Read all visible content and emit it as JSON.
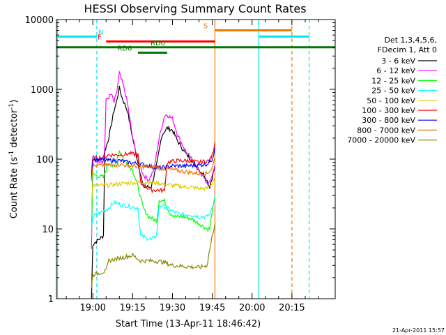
{
  "chart_data": {
    "type": "line",
    "title": "HESSI Observing Summary Count Rates",
    "xlabel": "Start Time (13-Apr-11 18:46:42)",
    "ylabel_main": "Count Rate (s",
    "ylabel_sup1": "-1",
    "ylabel_mid": " detector",
    "ylabel_sup2": "-1",
    "ylabel_end": ")",
    "y_scale": "log",
    "ylim": [
      1,
      10000
    ],
    "xlim_minutes": [
      -13.7,
      91.3
    ],
    "x_ticks": [
      {
        "min": 0,
        "label": "19:00"
      },
      {
        "min": 15,
        "label": "19:15"
      },
      {
        "min": 30,
        "label": "19:30"
      },
      {
        "min": 45,
        "label": "19:45"
      },
      {
        "min": 60,
        "label": "20:00"
      },
      {
        "min": 75,
        "label": "20:15"
      }
    ],
    "y_ticks": [
      {
        "v": 1,
        "label": "1"
      },
      {
        "v": 10,
        "label": "10"
      },
      {
        "v": 100,
        "label": "100"
      },
      {
        "v": 1000,
        "label": "1000"
      },
      {
        "v": 10000,
        "label": "10000"
      }
    ],
    "legend_header": [
      "Det 1,3,4,5,6,",
      "FDecim 1, Att 0"
    ],
    "legend_placement": "right",
    "timestamp": "21-Apr-2011 15:57",
    "series": [
      {
        "name": "3 - 6 keV",
        "color": "#000000",
        "points": [
          [
            -0.5,
            1
          ],
          [
            0,
            6
          ],
          [
            4,
            8
          ],
          [
            4.5,
            130
          ],
          [
            6,
            200
          ],
          [
            8,
            500
          ],
          [
            9,
            680
          ],
          [
            10,
            1050
          ],
          [
            11,
            760
          ],
          [
            13,
            500
          ],
          [
            15,
            200
          ],
          [
            17,
            90
          ],
          [
            19,
            40
          ],
          [
            22,
            40
          ],
          [
            24,
            80
          ],
          [
            26,
            220
          ],
          [
            28,
            280
          ],
          [
            30,
            260
          ],
          [
            32,
            180
          ],
          [
            35,
            120
          ],
          [
            38,
            90
          ],
          [
            40,
            70
          ],
          [
            42,
            60
          ],
          [
            44,
            40
          ],
          [
            45,
            55
          ],
          [
            46,
            80
          ]
        ]
      },
      {
        "name": "6 - 12 keV",
        "color": "#ff00ff",
        "points": [
          [
            -0.5,
            5
          ],
          [
            0,
            95
          ],
          [
            4,
            95
          ],
          [
            4.5,
            150
          ],
          [
            5,
            700
          ],
          [
            7,
            850
          ],
          [
            8,
            650
          ],
          [
            9,
            900
          ],
          [
            10,
            1700
          ],
          [
            11,
            1300
          ],
          [
            12,
            950
          ],
          [
            13,
            650
          ],
          [
            15,
            200
          ],
          [
            17,
            100
          ],
          [
            19,
            60
          ],
          [
            21,
            50
          ],
          [
            23,
            70
          ],
          [
            25,
            200
          ],
          [
            27,
            420
          ],
          [
            28,
            430
          ],
          [
            30,
            380
          ],
          [
            32,
            220
          ],
          [
            35,
            130
          ],
          [
            38,
            90
          ],
          [
            41,
            60
          ],
          [
            43,
            45
          ],
          [
            44,
            45
          ],
          [
            45,
            60
          ],
          [
            46,
            80
          ]
        ]
      },
      {
        "name": "12 - 25 keV",
        "color": "#00ff00",
        "points": [
          [
            -0.5,
            8
          ],
          [
            0,
            60
          ],
          [
            4,
            55
          ],
          [
            6,
            90
          ],
          [
            8,
            75
          ],
          [
            10,
            130
          ],
          [
            12,
            95
          ],
          [
            15,
            70
          ],
          [
            17,
            40
          ],
          [
            19,
            20
          ],
          [
            21,
            15
          ],
          [
            24,
            13
          ],
          [
            25,
            26
          ],
          [
            27,
            25
          ],
          [
            29,
            17
          ],
          [
            31,
            15
          ],
          [
            34,
            15
          ],
          [
            37,
            14
          ],
          [
            40,
            12
          ],
          [
            43,
            10
          ],
          [
            44,
            10
          ],
          [
            45,
            18
          ],
          [
            46,
            28
          ]
        ]
      },
      {
        "name": "25 - 50 keV",
        "color": "#00ffff",
        "points": [
          [
            -0.5,
            10
          ],
          [
            0,
            15
          ],
          [
            4,
            18
          ],
          [
            6,
            20
          ],
          [
            8,
            24
          ],
          [
            11,
            22
          ],
          [
            14,
            21
          ],
          [
            17,
            20
          ],
          [
            18,
            8
          ],
          [
            22,
            7
          ],
          [
            24,
            8
          ],
          [
            25,
            22
          ],
          [
            27,
            21
          ],
          [
            30,
            18
          ],
          [
            33,
            16
          ],
          [
            37,
            16
          ],
          [
            40,
            15
          ],
          [
            43,
            15
          ],
          [
            44,
            16
          ],
          [
            45,
            20
          ],
          [
            46,
            30
          ]
        ]
      },
      {
        "name": "50 - 100 keV",
        "color": "#ddcc00",
        "points": [
          [
            -0.5,
            25
          ],
          [
            0,
            42
          ],
          [
            5,
            42
          ],
          [
            10,
            44
          ],
          [
            15,
            46
          ],
          [
            20,
            47
          ],
          [
            25,
            45
          ],
          [
            30,
            42
          ],
          [
            35,
            40
          ],
          [
            40,
            38
          ],
          [
            43,
            38
          ],
          [
            45,
            45
          ],
          [
            46,
            55
          ]
        ]
      },
      {
        "name": "100 - 300 keV",
        "color": "#ff0000",
        "points": [
          [
            -0.5,
            60
          ],
          [
            0,
            105
          ],
          [
            4,
            105
          ],
          [
            6,
            115
          ],
          [
            10,
            115
          ],
          [
            14,
            120
          ],
          [
            17,
            115
          ],
          [
            18,
            45
          ],
          [
            22,
            36
          ],
          [
            25,
            36
          ],
          [
            27,
            35
          ],
          [
            28,
            90
          ],
          [
            32,
            95
          ],
          [
            36,
            95
          ],
          [
            40,
            90
          ],
          [
            44,
            95
          ],
          [
            45,
            115
          ],
          [
            46,
            175
          ]
        ]
      },
      {
        "name": "300 - 800 keV",
        "color": "#0000ff",
        "points": [
          [
            -0.5,
            55
          ],
          [
            0,
            100
          ],
          [
            5,
            96
          ],
          [
            10,
            95
          ],
          [
            15,
            88
          ],
          [
            18,
            85
          ],
          [
            22,
            78
          ],
          [
            26,
            75
          ],
          [
            30,
            80
          ],
          [
            35,
            80
          ],
          [
            40,
            82
          ],
          [
            43,
            85
          ],
          [
            45,
            100
          ],
          [
            46,
            145
          ]
        ]
      },
      {
        "name": "800 - 7000 keV",
        "color": "#ee7700",
        "points": [
          [
            -0.5,
            50
          ],
          [
            0,
            80
          ],
          [
            5,
            82
          ],
          [
            10,
            84
          ],
          [
            15,
            80
          ],
          [
            20,
            78
          ],
          [
            25,
            75
          ],
          [
            30,
            70
          ],
          [
            35,
            66
          ],
          [
            40,
            62
          ],
          [
            43,
            62
          ],
          [
            45,
            75
          ],
          [
            46,
            105
          ]
        ]
      },
      {
        "name": "7000 - 20000 keV",
        "color": "#888800",
        "points": [
          [
            -0.5,
            1.5
          ],
          [
            0,
            2.2
          ],
          [
            5,
            2.5
          ],
          [
            6,
            3.5
          ],
          [
            10,
            3.8
          ],
          [
            15,
            4.2
          ],
          [
            18,
            3.5
          ],
          [
            22,
            3.5
          ],
          [
            26,
            3.4
          ],
          [
            30,
            3.0
          ],
          [
            35,
            2.9
          ],
          [
            40,
            2.8
          ],
          [
            43,
            3.0
          ],
          [
            44,
            5
          ],
          [
            45,
            8
          ],
          [
            46,
            12
          ]
        ]
      }
    ],
    "flags": [
      {
        "label": "N",
        "color": "#00e5ee",
        "y": 5700,
        "segments": [
          [
            -13.7,
            1.5
          ],
          [
            62.5,
            81.5
          ]
        ],
        "label_at": 3
      },
      {
        "label": "S",
        "color": "#ee7700",
        "y": 7000,
        "segments": [
          [
            46,
            75
          ]
        ],
        "label_at": 42.5
      },
      {
        "label": "F",
        "color": "#ff0000",
        "y": 4850,
        "segments": [
          [
            5,
            46
          ]
        ],
        "label_at": 2.5
      },
      {
        "label": "RD0",
        "color": "#007700",
        "y": 4000,
        "segments": [
          [
            -13.7,
            91.3
          ]
        ],
        "label_at": 24.5
      },
      {
        "label": "RD6",
        "color": "#007700",
        "y": 3350,
        "segments": [
          [
            17,
            28
          ]
        ],
        "label_at": 12
      }
    ],
    "vlines": [
      {
        "min": -13.3,
        "color": "#00e5ee",
        "dash": false
      },
      {
        "min": 1.5,
        "color": "#00e5ee",
        "dash": true
      },
      {
        "min": 46,
        "color": "#ee7700",
        "dash": false
      },
      {
        "min": 62.5,
        "color": "#00e5ee",
        "dash": false
      },
      {
        "min": 75,
        "color": "#ee7700",
        "dash": true
      },
      {
        "min": 81.5,
        "color": "#00e5ee",
        "dash": true
      }
    ]
  }
}
